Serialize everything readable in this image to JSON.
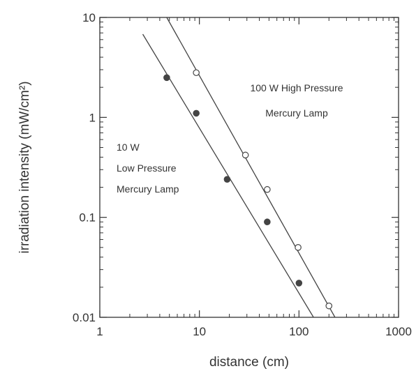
{
  "chart_data": {
    "type": "scatter",
    "title": "",
    "xlabel": "distance (cm)",
    "ylabel": "irradiation intensity (mW/cm²)",
    "xscale": "log",
    "yscale": "log",
    "xlim": [
      1,
      1000
    ],
    "ylim": [
      0.01,
      10
    ],
    "x_ticks": [
      1,
      10,
      100,
      1000
    ],
    "x_tick_labels": [
      "1",
      "10",
      "100",
      "1000"
    ],
    "y_ticks": [
      0.01,
      0.1,
      1,
      10
    ],
    "y_tick_labels": [
      "0.01",
      "0.1",
      "1",
      "10"
    ],
    "grid": false,
    "legend": "none",
    "series": [
      {
        "name": "10 W Low Pressure Mercury Lamp",
        "marker": "filled-circle",
        "points": [
          {
            "x": 4.7,
            "y": 2.5
          },
          {
            "x": 9.3,
            "y": 1.1
          },
          {
            "x": 19,
            "y": 0.24
          },
          {
            "x": 48,
            "y": 0.09
          },
          {
            "x": 100,
            "y": 0.022
          }
        ],
        "fit_line": [
          {
            "x": 2.7,
            "y": 6.8
          },
          {
            "x": 140,
            "y": 0.01
          }
        ]
      },
      {
        "name": "100 W High Pressure Mercury Lamp",
        "marker": "open-circle",
        "points": [
          {
            "x": 9.3,
            "y": 2.8
          },
          {
            "x": 29,
            "y": 0.42
          },
          {
            "x": 48,
            "y": 0.19
          },
          {
            "x": 98,
            "y": 0.05
          },
          {
            "x": 200,
            "y": 0.013
          }
        ],
        "fit_line": [
          {
            "x": 4.7,
            "y": 10
          },
          {
            "x": 230,
            "y": 0.01
          }
        ]
      }
    ],
    "annotations": [
      {
        "lines": [
          "100 W High Pressure",
          "Mercury Lamp"
        ],
        "near": {
          "x": 45,
          "y": 2.0
        }
      },
      {
        "lines": [
          "10 W",
          "Low Pressure",
          "Mercury Lamp"
        ],
        "near": {
          "x": 7,
          "y": 0.5
        }
      }
    ]
  },
  "colors": {
    "axis": "#333333",
    "series": "#444444",
    "open_marker_fill": "#ffffff"
  }
}
